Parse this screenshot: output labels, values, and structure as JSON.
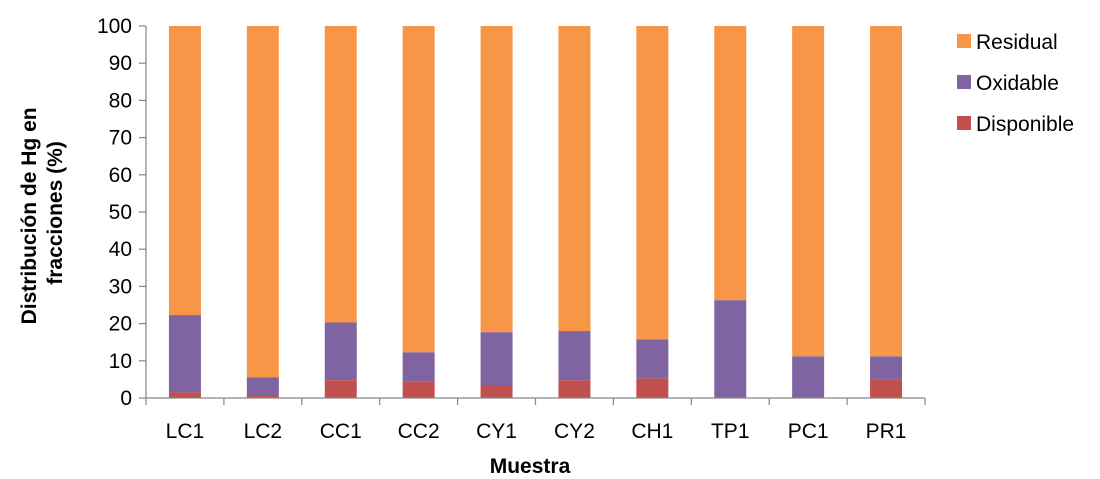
{
  "chart_data": {
    "type": "bar",
    "stacked": true,
    "title": "",
    "xlabel": "Muestra",
    "ylabel": [
      "Distribución de Hg  en",
      "fracciones (%)"
    ],
    "ylim": [
      0,
      100
    ],
    "yticks": [
      0,
      10,
      20,
      30,
      40,
      50,
      60,
      70,
      80,
      90,
      100
    ],
    "grid": false,
    "legend_position": "right",
    "categories": [
      "LC1",
      "LC2",
      "CC1",
      "CC2",
      "CY1",
      "CY2",
      "CH1",
      "TP1",
      "PC1",
      "PR1"
    ],
    "series": [
      {
        "name": "Disponible",
        "color": "#c0504d",
        "values": [
          1.5,
          0.8,
          4.8,
          4.5,
          3.5,
          4.8,
          5.3,
          0,
          0,
          5.0
        ]
      },
      {
        "name": "Oxidable",
        "color": "#8064a2",
        "values": [
          20.8,
          4.8,
          15.5,
          7.8,
          14.2,
          13.2,
          10.5,
          26.3,
          11.2,
          6.2
        ]
      },
      {
        "name": "Residual",
        "color": "#f79646",
        "values": [
          77.7,
          94.4,
          79.7,
          87.7,
          82.3,
          82.0,
          84.2,
          73.7,
          88.8,
          88.8
        ]
      }
    ],
    "legend_order": [
      "Residual",
      "Oxidable",
      "Disponible"
    ]
  }
}
